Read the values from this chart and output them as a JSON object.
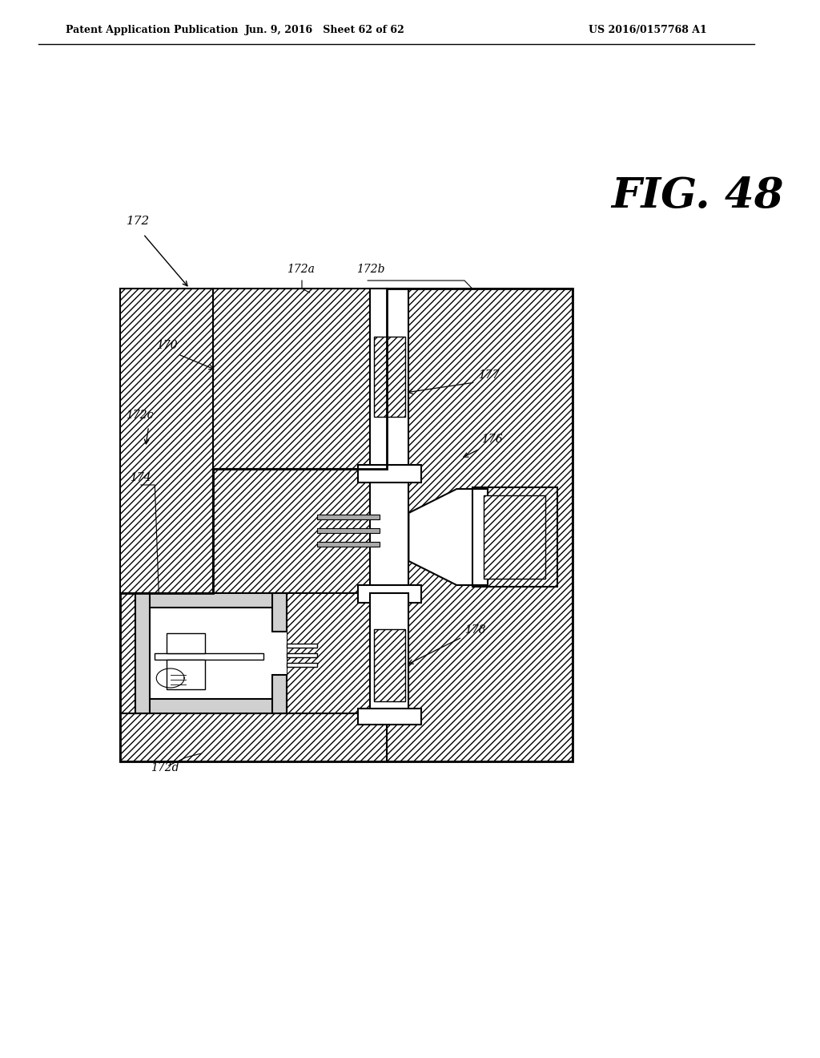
{
  "header_left": "Patent Application Publication",
  "header_mid": "Jun. 9, 2016   Sheet 62 of 62",
  "header_right": "US 2016/0157768 A1",
  "fig_label": "FIG. 48",
  "background_color": "#ffffff",
  "line_color": "#000000",
  "hatch_color": "#000000"
}
